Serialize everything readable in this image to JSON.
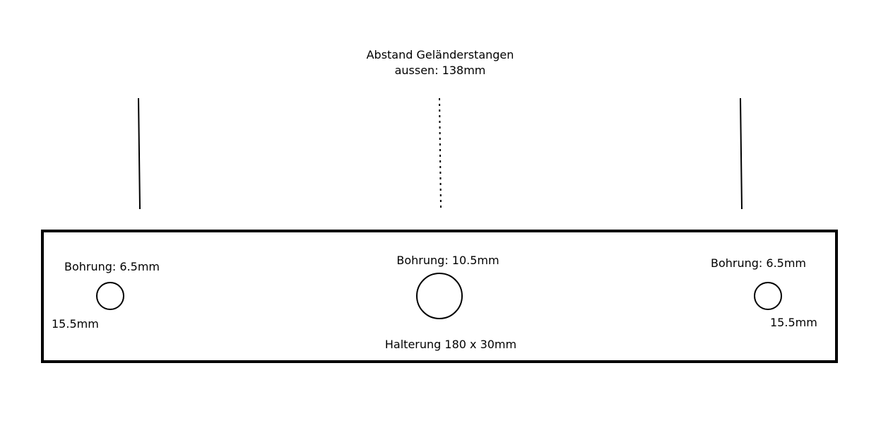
{
  "title": {
    "line1": "Abstand Geländerstangen",
    "line2": "aussen: 138mm"
  },
  "plate": {
    "label": "Halterung 180 x 30mm"
  },
  "holes": {
    "left": {
      "label": "Bohrung: 6.5mm",
      "offset_label": "15.5mm"
    },
    "center": {
      "label": "Bohrung: 10.5mm"
    },
    "right": {
      "label": "Bohrung: 6.5mm",
      "offset_label": "15.5mm"
    }
  },
  "colors": {
    "stroke": "#000000",
    "background": "#ffffff"
  }
}
